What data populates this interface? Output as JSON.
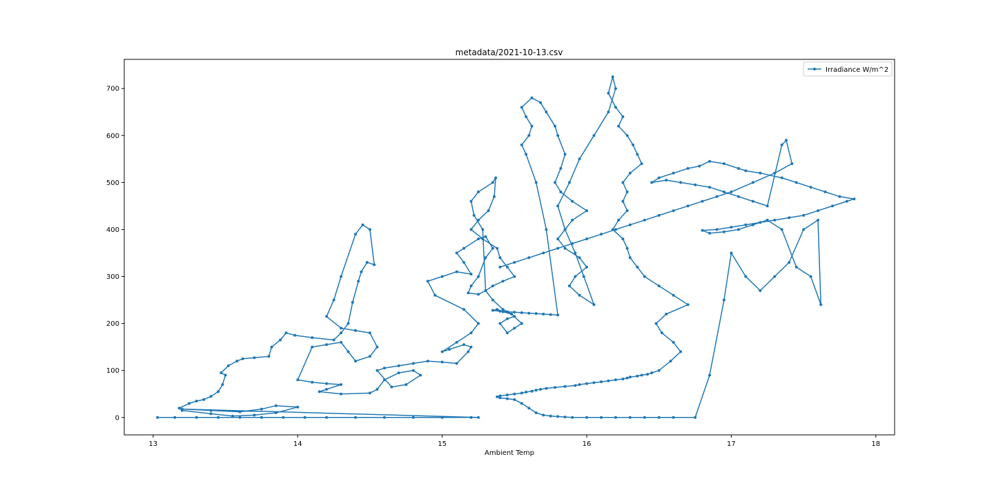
{
  "chart_data": {
    "type": "line",
    "title": "metadata/2021-10-13.csv",
    "xlabel": "Ambient Temp",
    "ylabel": "",
    "xlim": [
      12.8,
      18.13
    ],
    "ylim": [
      -37,
      762
    ],
    "xticks": [
      13,
      14,
      15,
      16,
      17,
      18
    ],
    "yticks": [
      0,
      100,
      200,
      300,
      400,
      500,
      600,
      700
    ],
    "grid": false,
    "legend_position": "top-right",
    "series": [
      {
        "name": "Irradiance W/m^2",
        "color": "#1f77b4",
        "marker": "point",
        "x": [
          13.03,
          13.15,
          13.3,
          13.45,
          13.6,
          13.75,
          13.9,
          14.05,
          14.2,
          14.4,
          14.6,
          14.8,
          15.0,
          15.2,
          15.25,
          13.2,
          13.4,
          13.6,
          13.75,
          13.85,
          14.0,
          13.85,
          13.7,
          13.55,
          13.4,
          13.2,
          13.18,
          13.25,
          13.3,
          13.35,
          13.4,
          13.45,
          13.48,
          13.5,
          13.47,
          13.52,
          13.58,
          13.62,
          13.7,
          13.8,
          13.82,
          13.88,
          13.92,
          13.98,
          14.1,
          14.25,
          14.3,
          14.35,
          14.38,
          14.42,
          14.44,
          14.48,
          14.53,
          14.5,
          14.45,
          14.4,
          14.3,
          14.25,
          14.2,
          14.3,
          14.4,
          14.5,
          14.55,
          14.5,
          14.4,
          14.35,
          14.3,
          14.2,
          14.1,
          14.0,
          14.1,
          14.2,
          14.3,
          14.2,
          14.15,
          14.3,
          14.5,
          14.55,
          14.6,
          14.7,
          14.8,
          14.85,
          14.75,
          14.65,
          14.55,
          14.6,
          14.7,
          14.8,
          14.9,
          15.0,
          15.1,
          15.18,
          15.2,
          15.15,
          15.05,
          15.0,
          15.1,
          15.2,
          15.25,
          15.15,
          14.95,
          14.9,
          15.0,
          15.1,
          15.2,
          15.15,
          15.1,
          15.15,
          15.25,
          15.3,
          15.35,
          15.3,
          15.25,
          15.2,
          15.18,
          15.25,
          15.3,
          15.28,
          15.22,
          15.2,
          15.25,
          15.35,
          15.37,
          15.36,
          15.32,
          15.25,
          15.2,
          15.28,
          15.38,
          15.4,
          15.45,
          15.5,
          15.42,
          15.35,
          15.3,
          15.35,
          15.42,
          15.48,
          15.55,
          15.5,
          15.45,
          15.4,
          15.45,
          15.5,
          15.48,
          15.42,
          15.38,
          15.35,
          15.4,
          15.45,
          15.5,
          15.55,
          15.6,
          15.65,
          15.7,
          15.75,
          15.8,
          15.72,
          15.65,
          15.58,
          15.55,
          15.6,
          15.62,
          15.58,
          15.55,
          15.62,
          15.68,
          15.72,
          15.78,
          15.8,
          15.85,
          15.82,
          15.78,
          15.82,
          15.9,
          16.0,
          15.9,
          15.85,
          15.8,
          15.85,
          15.95,
          16.0,
          15.92,
          15.88,
          15.95,
          16.05,
          15.98,
          15.92,
          15.85,
          15.8,
          15.88,
          15.95,
          16.05,
          16.15,
          16.2,
          16.18,
          16.15,
          16.2,
          16.25,
          16.22,
          16.28,
          16.32,
          16.35,
          16.38,
          16.3,
          16.25,
          16.28,
          16.25,
          16.28,
          16.22,
          16.18,
          16.25,
          16.28,
          16.3,
          16.35,
          16.4,
          16.5,
          16.6,
          16.7,
          16.55,
          16.48,
          16.52,
          16.6,
          16.65,
          16.58,
          16.5,
          16.45,
          16.42,
          16.38,
          16.35,
          16.3,
          16.28,
          16.25,
          16.2,
          16.15,
          16.1,
          16.05,
          16.0,
          15.95,
          15.92,
          15.85,
          15.78,
          15.72,
          15.68,
          15.65,
          15.62,
          15.58,
          15.55,
          15.5,
          15.45,
          15.4,
          15.38,
          15.4,
          15.45,
          15.5,
          15.55,
          15.6,
          15.65,
          15.7,
          15.75,
          15.8,
          15.85,
          15.9,
          16.0,
          16.1,
          16.2,
          16.3,
          16.4,
          16.5,
          16.6,
          16.75,
          16.85,
          16.95,
          17.0,
          17.1,
          17.2,
          17.3,
          17.4,
          17.5,
          17.6,
          17.62,
          17.55,
          17.45,
          17.35,
          17.25,
          17.15,
          17.05,
          16.95,
          16.85,
          16.8,
          16.9,
          17.0,
          17.1,
          17.2,
          17.3,
          17.4,
          17.5,
          17.6,
          17.7,
          17.8,
          17.85,
          17.75,
          17.65,
          17.55,
          17.45,
          17.35,
          17.2,
          17.1,
          17.05,
          16.95,
          16.85,
          16.78,
          16.7,
          16.6,
          16.5,
          16.45,
          16.55,
          16.65,
          16.75,
          16.85,
          16.95,
          17.05,
          17.15,
          17.25,
          17.35,
          17.38,
          17.42,
          17.3,
          17.15,
          17.0,
          16.9,
          16.8,
          16.7,
          16.6,
          16.5,
          16.4,
          16.3,
          16.2,
          16.1,
          16.0,
          15.9,
          15.8,
          15.7,
          15.6,
          15.5,
          15.4
        ],
        "y": [
          0,
          0,
          0,
          0,
          0,
          0,
          0,
          0,
          0,
          0,
          0,
          0,
          0,
          0,
          0,
          18,
          15,
          12,
          18,
          25,
          22,
          10,
          5,
          3,
          8,
          15,
          20,
          30,
          35,
          38,
          45,
          55,
          70,
          90,
          95,
          110,
          120,
          125,
          127,
          130,
          150,
          165,
          180,
          175,
          170,
          165,
          180,
          200,
          245,
          290,
          310,
          330,
          325,
          400,
          410,
          390,
          300,
          250,
          215,
          190,
          185,
          180,
          150,
          130,
          120,
          140,
          160,
          155,
          150,
          80,
          75,
          72,
          70,
          60,
          55,
          50,
          52,
          60,
          80,
          95,
          100,
          90,
          70,
          65,
          100,
          105,
          110,
          115,
          120,
          118,
          115,
          140,
          150,
          155,
          145,
          140,
          160,
          180,
          200,
          230,
          260,
          290,
          300,
          310,
          305,
          330,
          350,
          360,
          380,
          385,
          360,
          340,
          300,
          280,
          265,
          262,
          270,
          400,
          430,
          460,
          480,
          500,
          510,
          470,
          440,
          420,
          400,
          380,
          360,
          340,
          320,
          300,
          290,
          280,
          270,
          250,
          230,
          220,
          200,
          190,
          180,
          200,
          210,
          215,
          220,
          225,
          230,
          228,
          226,
          225,
          224,
          223,
          222,
          221,
          220,
          219,
          218,
          400,
          500,
          560,
          580,
          600,
          620,
          640,
          660,
          680,
          670,
          650,
          620,
          600,
          560,
          530,
          500,
          480,
          460,
          440,
          420,
          400,
          380,
          360,
          340,
          320,
          300,
          280,
          260,
          240,
          300,
          350,
          400,
          450,
          500,
          550,
          600,
          650,
          700,
          725,
          690,
          660,
          640,
          620,
          600,
          580,
          560,
          540,
          520,
          500,
          480,
          460,
          440,
          420,
          400,
          380,
          360,
          340,
          320,
          300,
          280,
          260,
          240,
          220,
          200,
          180,
          160,
          140,
          120,
          100,
          95,
          92,
          90,
          88,
          86,
          84,
          82,
          80,
          78,
          76,
          74,
          72,
          70,
          68,
          66,
          64,
          62,
          60,
          58,
          56,
          54,
          52,
          50,
          48,
          46,
          44,
          42,
          40,
          38,
          30,
          20,
          10,
          5,
          3,
          2,
          1,
          0,
          0,
          0,
          0,
          0,
          0,
          0,
          0,
          0,
          90,
          250,
          350,
          300,
          270,
          300,
          330,
          400,
          420,
          240,
          300,
          320,
          400,
          420,
          410,
          400,
          395,
          392,
          398,
          400,
          405,
          410,
          415,
          420,
          425,
          430,
          440,
          450,
          460,
          465,
          470,
          480,
          490,
          500,
          510,
          520,
          525,
          530,
          540,
          545,
          535,
          530,
          520,
          510,
          500,
          505,
          500,
          495,
          490,
          480,
          470,
          460,
          450,
          580,
          590,
          540,
          520,
          500,
          480,
          470,
          460,
          450,
          440,
          430,
          420,
          410,
          400,
          390,
          380,
          370,
          360,
          350,
          340,
          330,
          320
        ]
      }
    ]
  }
}
